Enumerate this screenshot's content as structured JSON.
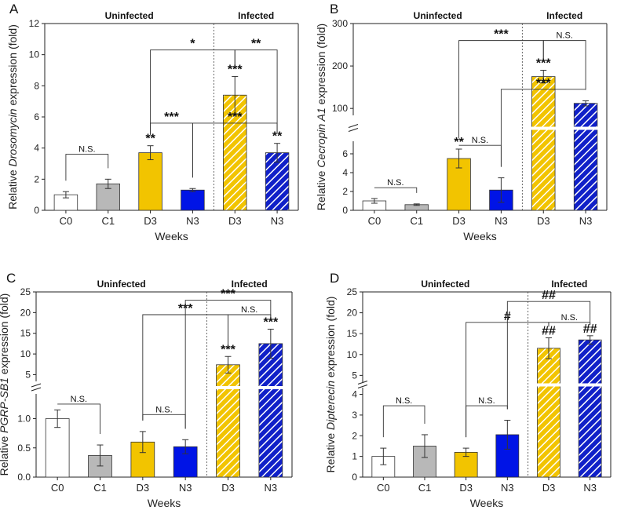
{
  "figure": {
    "x_title": "Weeks",
    "group_uninfected": "Uninfected",
    "group_infected": "Infected"
  },
  "colors": {
    "C0": "#ffffff",
    "C1": "#b8b8b8",
    "D3": "#f2c400",
    "N3": "#0014e6",
    "D3_inf": "#f2c400",
    "N3_inf": "#1020c8"
  },
  "chart_data": [
    {
      "type": "bar",
      "letter": "A",
      "title": "",
      "ylabel_pre": "Relative ",
      "ylabel_italic": "Drosomycin",
      "ylabel_post": " expression (fold)",
      "xlabel": "Weeks",
      "categories": [
        "C0",
        "C1",
        "D3",
        "N3",
        "D3",
        "N3"
      ],
      "infected": [
        false,
        false,
        false,
        false,
        true,
        true
      ],
      "values": [
        1.0,
        1.7,
        3.7,
        1.3,
        7.4,
        3.7
      ],
      "errors": [
        0.2,
        0.3,
        0.45,
        0.1,
        1.2,
        0.6
      ],
      "ylim": [
        0,
        12
      ],
      "yticks": [
        0,
        2,
        4,
        6,
        8,
        10,
        12
      ],
      "bar_labels": [
        "",
        "",
        "**",
        "",
        "***",
        "**"
      ],
      "brackets": [
        {
          "from": 0,
          "to": 1,
          "y": 3.6,
          "text": "N.S."
        },
        {
          "from": 2,
          "to": 4,
          "y": 10.3,
          "text": "*"
        },
        {
          "from": 4,
          "to": 5,
          "y": 10.3,
          "text": "**"
        },
        {
          "from": 2,
          "to": 3,
          "y": 5.6,
          "text": "***"
        },
        {
          "from": 3,
          "to": 5,
          "y": 5.6,
          "text": "***"
        }
      ]
    },
    {
      "type": "bar",
      "letter": "B",
      "title": "",
      "ylabel_pre": "Relative ",
      "ylabel_italic": "Cecropin A1",
      "ylabel_post": " expression (fold)",
      "xlabel": "Weeks",
      "categories": [
        "C0",
        "C1",
        "D3",
        "N3",
        "D3",
        "N3"
      ],
      "infected": [
        false,
        false,
        false,
        false,
        true,
        true
      ],
      "values": [
        1.0,
        0.6,
        5.5,
        2.15,
        175,
        112
      ],
      "errors": [
        0.25,
        0.08,
        1.0,
        1.3,
        15,
        6
      ],
      "y_break": true,
      "ylim_lower": [
        0,
        7.5
      ],
      "ylim_upper": [
        80,
        300
      ],
      "yticks_lower": [
        0,
        2,
        4,
        6
      ],
      "yticks_upper": [
        100,
        200,
        300
      ],
      "bar_labels": [
        "",
        "",
        "**",
        "",
        "***",
        ""
      ],
      "brackets": [
        {
          "from": 0,
          "to": 1,
          "y": 2.4,
          "text": "N.S."
        },
        {
          "from": 2,
          "to": 3,
          "y": 6.9,
          "text": "N.S."
        },
        {
          "from": 2,
          "to": 4,
          "y": 260,
          "text": "***"
        },
        {
          "from": 4,
          "to": 5,
          "y": 260,
          "text": "N.S."
        },
        {
          "from": 3,
          "to": 5,
          "y": 145,
          "text": "***"
        }
      ]
    },
    {
      "type": "bar",
      "letter": "C",
      "title": "",
      "ylabel_pre": "Relative ",
      "ylabel_italic": "PGRP-SB1",
      "ylabel_post": " expression (fold)",
      "xlabel": "Weeks",
      "categories": [
        "C0",
        "C1",
        "D3",
        "N3",
        "D3",
        "N3"
      ],
      "infected": [
        false,
        false,
        false,
        false,
        true,
        true
      ],
      "values": [
        1.0,
        0.37,
        0.6,
        0.52,
        7.4,
        12.5
      ],
      "errors": [
        0.15,
        0.18,
        0.18,
        0.12,
        2.0,
        3.5
      ],
      "y_break": true,
      "ylim_lower": [
        0,
        1.45
      ],
      "ylim_upper": [
        3,
        25
      ],
      "yticks_lower": [
        0,
        0.5,
        1.0
      ],
      "yticks_upper": [
        5,
        10,
        15,
        20,
        25
      ],
      "bar_labels": [
        "",
        "",
        "",
        "",
        "***",
        "***"
      ],
      "brackets": [
        {
          "from": 0,
          "to": 1,
          "y": 1.25,
          "text": "N.S."
        },
        {
          "from": 2,
          "to": 3,
          "y": 1.07,
          "text": "N.S."
        },
        {
          "from": 2,
          "to": 4,
          "y": 19.5,
          "text": "***"
        },
        {
          "from": 4,
          "to": 5,
          "y": 19.5,
          "text": "N.S."
        },
        {
          "from": 3,
          "to": 5,
          "y": 23,
          "text": "***"
        }
      ]
    },
    {
      "type": "bar",
      "letter": "D",
      "title": "",
      "ylabel_pre": "Relative ",
      "ylabel_italic": "Dipterecin",
      "ylabel_post": " expression (fold)",
      "xlabel": "Weeks",
      "categories": [
        "C0",
        "C1",
        "D3",
        "N3",
        "D3",
        "N3"
      ],
      "infected": [
        false,
        false,
        false,
        false,
        true,
        true
      ],
      "values": [
        1.0,
        1.5,
        1.2,
        2.05,
        11.5,
        13.5
      ],
      "errors": [
        0.4,
        0.55,
        0.2,
        0.7,
        2.5,
        1.0
      ],
      "y_break": true,
      "ylim_lower": [
        0,
        4.4
      ],
      "ylim_upper": [
        3,
        25
      ],
      "yticks_lower": [
        0,
        1,
        2,
        3,
        4
      ],
      "yticks_upper": [
        5,
        10,
        15,
        20,
        25
      ],
      "bar_labels": [
        "",
        "",
        "",
        "",
        "##",
        "##"
      ],
      "brackets": [
        {
          "from": 0,
          "to": 1,
          "y": 3.45,
          "text": "N.S."
        },
        {
          "from": 2,
          "to": 3,
          "y": 3.45,
          "text": "N.S."
        },
        {
          "from": 2,
          "to": 4,
          "y": 17.7,
          "text": "#"
        },
        {
          "from": 4,
          "to": 5,
          "y": 17.7,
          "text": "N.S."
        },
        {
          "from": 3,
          "to": 5,
          "y": 22.7,
          "text": "##"
        }
      ]
    }
  ]
}
